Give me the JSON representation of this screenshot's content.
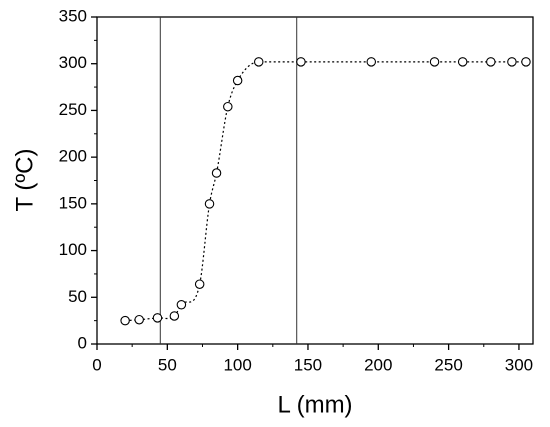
{
  "chart_data": {
    "type": "scatter",
    "x_label": "L (mm)",
    "y_label": "T (ºC)",
    "x": [
      20,
      30,
      43,
      55,
      60,
      73,
      80,
      85,
      93,
      100,
      115,
      145,
      195,
      240,
      260,
      280,
      295,
      305
    ],
    "values": [
      25,
      26,
      28,
      30,
      42,
      64,
      150,
      183,
      254,
      282,
      302,
      302,
      302,
      302,
      302,
      302,
      302,
      302
    ],
    "color": "#000000",
    "xlim": [
      0,
      310
    ],
    "xticks": [
      0,
      50,
      100,
      150,
      200,
      250,
      300
    ],
    "ylim": [
      0,
      350
    ],
    "yticks": [
      0,
      50,
      100,
      150,
      200,
      250,
      300,
      350
    ],
    "vlines": [
      45,
      142
    ]
  }
}
